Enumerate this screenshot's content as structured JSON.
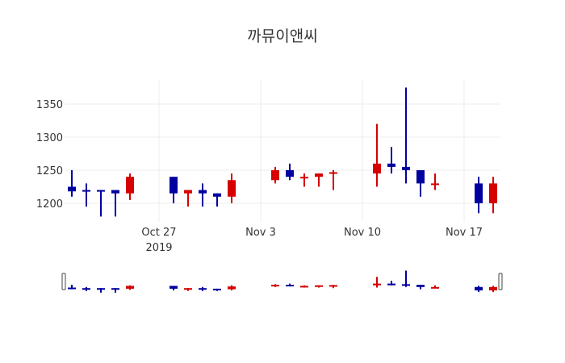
{
  "title": "까뮤이앤씨",
  "colors": {
    "increasing": "#d60000",
    "decreasing": "#0000a0",
    "grid": "#eeeeee",
    "text": "#333333"
  },
  "chart_data": {
    "type": "candlestick",
    "title": "까뮤이앤씨",
    "xlabel": "",
    "ylabel": "",
    "ylim": [
      1175,
      1385
    ],
    "grid": true,
    "y_ticks": [
      1200,
      1250,
      1300,
      1350
    ],
    "x_ticks": [
      {
        "label": "Oct 27",
        "sub": "2019",
        "date": "2019-10-27"
      },
      {
        "label": "Nov 3",
        "sub": "",
        "date": "2019-11-03"
      },
      {
        "label": "Nov 10",
        "sub": "",
        "date": "2019-11-10"
      },
      {
        "label": "Nov 17",
        "sub": "",
        "date": "2019-11-17"
      }
    ],
    "rangeslider": true,
    "candles": [
      {
        "date": "2019-10-21",
        "open": 1225,
        "high": 1250,
        "low": 1210,
        "close": 1218
      },
      {
        "date": "2019-10-22",
        "open": 1220,
        "high": 1230,
        "low": 1195,
        "close": 1218
      },
      {
        "date": "2019-10-23",
        "open": 1220,
        "high": 1220,
        "low": 1180,
        "close": 1218
      },
      {
        "date": "2019-10-24",
        "open": 1220,
        "high": 1220,
        "low": 1180,
        "close": 1215
      },
      {
        "date": "2019-10-25",
        "open": 1215,
        "high": 1245,
        "low": 1205,
        "close": 1240
      },
      {
        "date": "2019-10-28",
        "open": 1240,
        "high": 1240,
        "low": 1200,
        "close": 1215
      },
      {
        "date": "2019-10-29",
        "open": 1215,
        "high": 1220,
        "low": 1195,
        "close": 1220
      },
      {
        "date": "2019-10-30",
        "open": 1220,
        "high": 1230,
        "low": 1195,
        "close": 1215
      },
      {
        "date": "2019-10-31",
        "open": 1215,
        "high": 1215,
        "low": 1195,
        "close": 1210
      },
      {
        "date": "2019-11-01",
        "open": 1210,
        "high": 1245,
        "low": 1200,
        "close": 1235
      },
      {
        "date": "2019-11-04",
        "open": 1235,
        "high": 1255,
        "low": 1230,
        "close": 1250
      },
      {
        "date": "2019-11-05",
        "open": 1250,
        "high": 1260,
        "low": 1235,
        "close": 1240
      },
      {
        "date": "2019-11-06",
        "open": 1240,
        "high": 1245,
        "low": 1225,
        "close": 1240
      },
      {
        "date": "2019-11-07",
        "open": 1240,
        "high": 1245,
        "low": 1225,
        "close": 1245
      },
      {
        "date": "2019-11-08",
        "open": 1245,
        "high": 1250,
        "low": 1220,
        "close": 1247
      },
      {
        "date": "2019-11-11",
        "open": 1245,
        "high": 1320,
        "low": 1225,
        "close": 1260
      },
      {
        "date": "2019-11-12",
        "open": 1260,
        "high": 1285,
        "low": 1245,
        "close": 1255
      },
      {
        "date": "2019-11-13",
        "open": 1255,
        "high": 1375,
        "low": 1230,
        "close": 1250
      },
      {
        "date": "2019-11-14",
        "open": 1250,
        "high": 1250,
        "low": 1210,
        "close": 1230
      },
      {
        "date": "2019-11-15",
        "open": 1230,
        "high": 1245,
        "low": 1220,
        "close": 1230
      },
      {
        "date": "2019-11-18",
        "open": 1230,
        "high": 1240,
        "low": 1185,
        "close": 1200
      },
      {
        "date": "2019-11-19",
        "open": 1200,
        "high": 1240,
        "low": 1185,
        "close": 1230
      }
    ]
  }
}
